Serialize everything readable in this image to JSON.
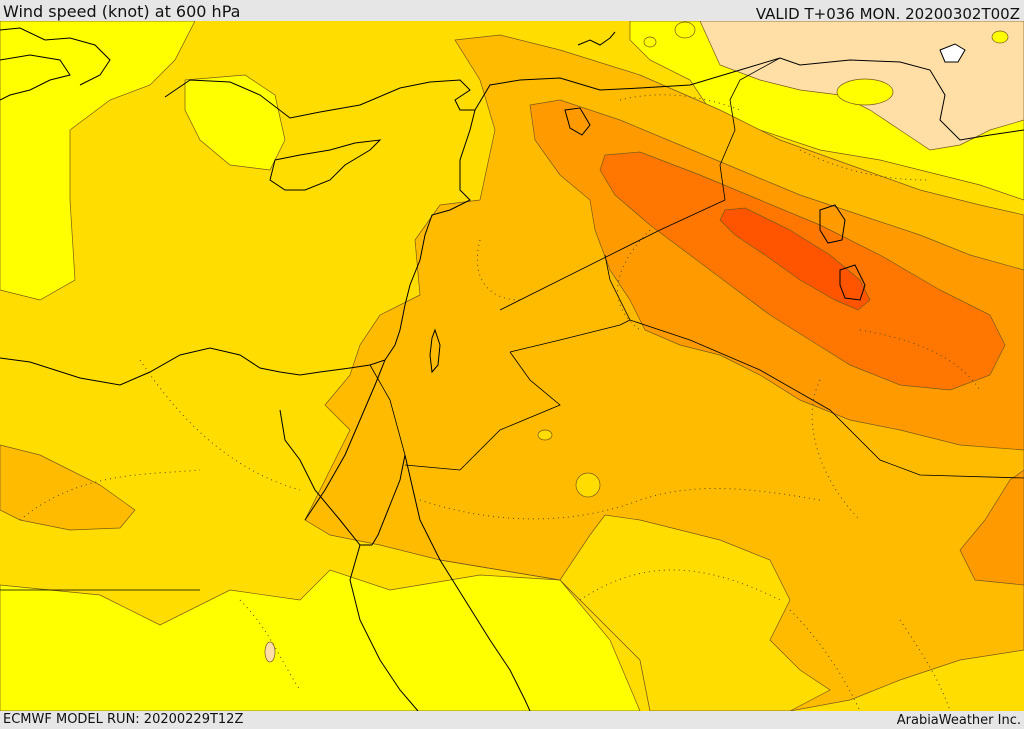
{
  "header": {
    "title": "Wind speed (knot) at 600 hPa",
    "valid": "VALID T+036 MON. 20200302T00Z"
  },
  "footer": {
    "model_run": "ECMWF MODEL RUN: 20200229T12Z",
    "credit": "ArabiaWeather Inc."
  },
  "colors": {
    "band_lightest": "#ffff00",
    "band_light": "#ffdd00",
    "band_mid": "#ffbb00",
    "band_orange": "#ff9a00",
    "band_deep": "#ff7700",
    "band_core": "#ff5500",
    "band_pale": "#ffdfa6",
    "contour": "#7a5a1a",
    "border": "#000000"
  }
}
